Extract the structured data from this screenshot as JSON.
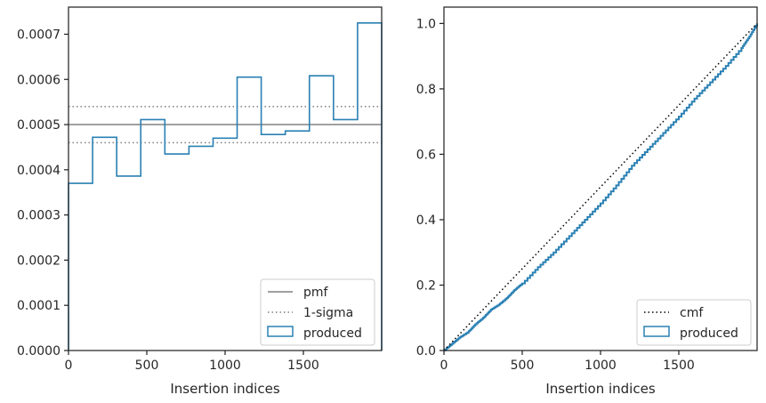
{
  "colors": {
    "accent": "#2a80b3",
    "pmf_line": "#808080",
    "sigma_line": "#808080",
    "cmf_line": "#000000",
    "axes": "#262626",
    "legend_border": "#cccccc"
  },
  "chart_data": [
    {
      "type": "histogram",
      "title": "",
      "xlabel": "Insertion indices",
      "ylabel": "",
      "xlim": [
        0,
        2000
      ],
      "ylim": [
        0,
        0.00076
      ],
      "x_ticks": [
        0,
        500,
        1000,
        1500
      ],
      "x_tick_labels": [
        "0",
        "500",
        "1000",
        "1500"
      ],
      "y_ticks": [
        0,
        0.0001,
        0.0002,
        0.0003,
        0.0004,
        0.0005,
        0.0006,
        0.0007
      ],
      "y_tick_labels": [
        "0.0000",
        "0.0001",
        "0.0002",
        "0.0003",
        "0.0004",
        "0.0005",
        "0.0006",
        "0.0007"
      ],
      "grid": false,
      "legend_position": "lower-right",
      "series": [
        {
          "name": "produced",
          "style": "step",
          "bin_edges": [
            0,
            153.85,
            307.69,
            461.54,
            615.38,
            769.23,
            923.08,
            1076.92,
            1230.77,
            1384.62,
            1538.46,
            1692.31,
            1846.15,
            2000
          ],
          "values": [
            0.00037,
            0.000472,
            0.000386,
            0.000511,
            0.000435,
            0.000452,
            0.00047,
            0.000605,
            0.000478,
            0.000486,
            0.000608,
            0.000511,
            0.000725
          ]
        },
        {
          "name": "pmf",
          "style": "solid",
          "y": 0.0005
        },
        {
          "name": "1-sigma",
          "style": "dotted",
          "y": [
            0.00046,
            0.00054
          ]
        }
      ]
    },
    {
      "type": "line",
      "title": "",
      "xlabel": "Insertion indices",
      "ylabel": "",
      "xlim": [
        0,
        2000
      ],
      "ylim": [
        0,
        1.05
      ],
      "x_ticks": [
        0,
        500,
        1000,
        1500
      ],
      "x_tick_labels": [
        "0",
        "500",
        "1000",
        "1500"
      ],
      "y_ticks": [
        0,
        0.2,
        0.4,
        0.6,
        0.8,
        1.0
      ],
      "y_tick_labels": [
        "0.0",
        "0.2",
        "0.4",
        "0.6",
        "0.8",
        "1.0"
      ],
      "grid": false,
      "legend_position": "lower-right",
      "series": [
        {
          "name": "cmf",
          "style": "dotted",
          "x": [
            0,
            2000
          ],
          "y": [
            0,
            1.0
          ]
        },
        {
          "name": "produced",
          "style": "step",
          "x": [
            0,
            50,
            100,
            150,
            200,
            250,
            300,
            350,
            400,
            450,
            500,
            600,
            700,
            800,
            900,
            1000,
            1100,
            1200,
            1300,
            1400,
            1500,
            1600,
            1700,
            1800,
            1900,
            1950,
            2000
          ],
          "y": [
            0,
            0.02,
            0.04,
            0.055,
            0.08,
            0.1,
            0.125,
            0.14,
            0.16,
            0.185,
            0.205,
            0.255,
            0.3,
            0.35,
            0.4,
            0.45,
            0.505,
            0.565,
            0.615,
            0.665,
            0.715,
            0.77,
            0.82,
            0.87,
            0.925,
            0.96,
            1.0
          ]
        }
      ]
    }
  ]
}
